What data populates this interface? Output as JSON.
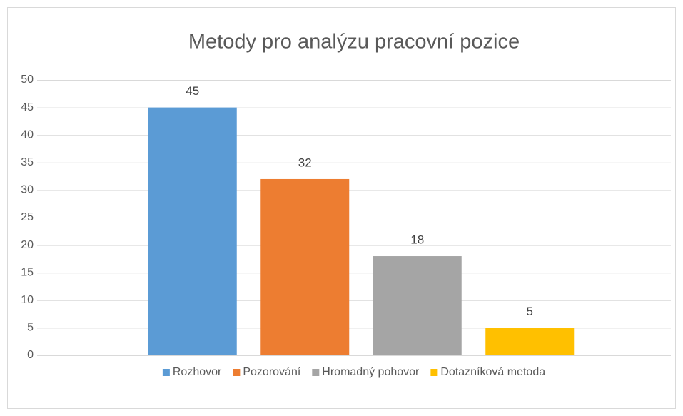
{
  "chart_data": {
    "type": "bar",
    "title": "Metody pro analýzu pracovní pozice",
    "categories": [
      null
    ],
    "series": [
      {
        "name": "Rozhovor",
        "color": "#5b9bd5",
        "values": [
          45
        ]
      },
      {
        "name": "Pozorování",
        "color": "#ed7d31",
        "values": [
          32
        ]
      },
      {
        "name": "Hromadný pohovor",
        "color": "#a5a5a5",
        "values": [
          18
        ]
      },
      {
        "name": "Dotazníková metoda",
        "color": "#ffc000",
        "values": [
          5
        ]
      }
    ],
    "ylim": [
      0,
      50
    ],
    "yticks": [
      0,
      5,
      10,
      15,
      20,
      25,
      30,
      35,
      40,
      45,
      50
    ],
    "grid": true,
    "legend": "bottom",
    "data_labels": true
  }
}
